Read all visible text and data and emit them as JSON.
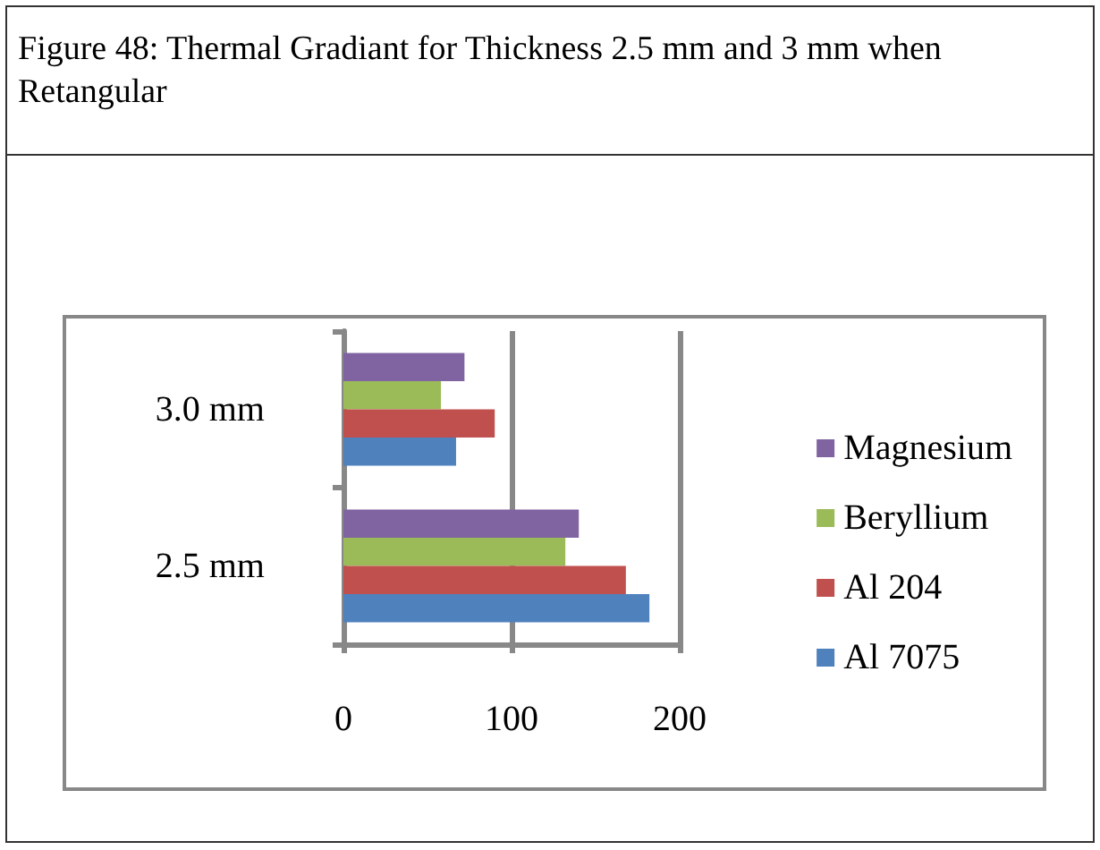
{
  "chart_data": {
    "type": "bar",
    "orientation": "horizontal",
    "title": "Figure 48: Thermal Gradiant for Thickness 2.5 mm and 3 mm when Retangular",
    "categories": [
      "3.0 mm",
      "2.5 mm"
    ],
    "series": [
      {
        "name": "Magnesium",
        "color": "#8064a2",
        "values": [
          72,
          140
        ]
      },
      {
        "name": "Beryllium",
        "color": "#9bbb59",
        "values": [
          58,
          132
        ]
      },
      {
        "name": "Al 204",
        "color": "#c0504d",
        "values": [
          90,
          168
        ]
      },
      {
        "name": "Al 7075",
        "color": "#4f81bd",
        "values": [
          67,
          182
        ]
      }
    ],
    "xlim": [
      0,
      200
    ],
    "xticks": [
      0,
      100,
      200
    ],
    "grid": "x",
    "legend": "right"
  }
}
